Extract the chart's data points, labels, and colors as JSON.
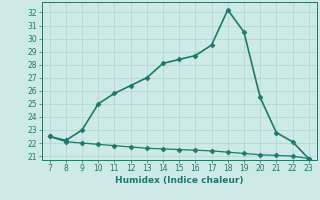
{
  "x": [
    7,
    8,
    9,
    10,
    11,
    12,
    13,
    14,
    15,
    16,
    17,
    18,
    19,
    20,
    21,
    22,
    23
  ],
  "y_upper": [
    22.5,
    22.2,
    23.0,
    25.0,
    25.8,
    26.4,
    27.0,
    28.1,
    28.4,
    28.7,
    29.5,
    32.2,
    30.5,
    25.5,
    22.8,
    22.1,
    20.8
  ],
  "y_lower": [
    22.5,
    22.1,
    22.0,
    21.9,
    21.8,
    21.7,
    21.6,
    21.55,
    21.5,
    21.45,
    21.4,
    21.3,
    21.2,
    21.1,
    21.05,
    21.0,
    20.8
  ],
  "xlabel": "Humidex (Indice chaleur)",
  "xlim": [
    6.5,
    23.5
  ],
  "ylim": [
    20.7,
    32.8
  ],
  "yticks": [
    21,
    22,
    23,
    24,
    25,
    26,
    27,
    28,
    29,
    30,
    31,
    32
  ],
  "xticks": [
    7,
    8,
    9,
    10,
    11,
    12,
    13,
    14,
    15,
    16,
    17,
    18,
    19,
    20,
    21,
    22,
    23
  ],
  "line_color": "#1a7a6e",
  "bg_color": "#ceeae6",
  "grid_color": "#afd4cf",
  "marker": "D",
  "marker_size": 2.5,
  "linewidth_upper": 1.2,
  "linewidth_lower": 0.9,
  "tick_labelsize": 5.5,
  "xlabel_fontsize": 6.5
}
